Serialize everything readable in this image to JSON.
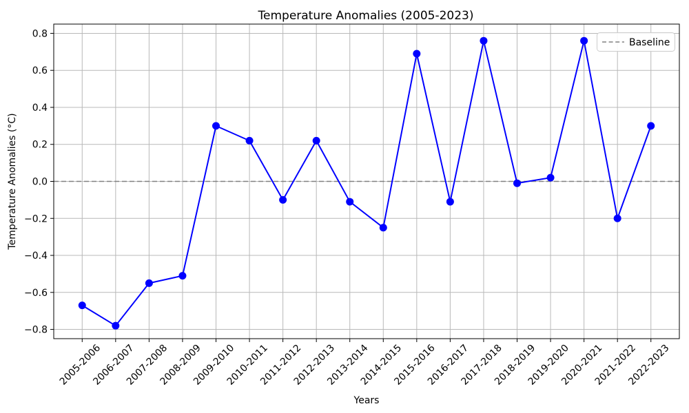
{
  "chart_data": {
    "type": "line",
    "title": "Temperature Anomalies (2005-2023)",
    "xlabel": "Years",
    "ylabel": "Temperature Anomalies (°C)",
    "categories": [
      "2005-2006",
      "2006-2007",
      "2007-2008",
      "2008-2009",
      "2009-2010",
      "2010-2011",
      "2011-2012",
      "2012-2013",
      "2013-2014",
      "2014-2015",
      "2015-2016",
      "2016-2017",
      "2017-2018",
      "2018-2019",
      "2019-2020",
      "2020-2021",
      "2021-2022",
      "2022-2023"
    ],
    "values": [
      -0.67,
      -0.78,
      -0.55,
      -0.51,
      0.3,
      0.22,
      -0.1,
      0.22,
      -0.11,
      -0.25,
      0.69,
      -0.11,
      0.76,
      -0.01,
      0.02,
      0.76,
      -0.2,
      0.3
    ],
    "series_name": "Temperature Anomalies",
    "series_color": "#0000ff",
    "marker": "circle",
    "baseline": {
      "value": 0.0,
      "label": "Baseline",
      "color": "#808080",
      "style": "dashed"
    },
    "ylim": [
      -0.85,
      0.85
    ],
    "yticks": [
      0.8,
      0.6,
      0.4,
      0.2,
      0.0,
      -0.2,
      -0.4,
      -0.6,
      -0.8
    ],
    "ytick_labels": [
      "0.8",
      "0.6",
      "0.4",
      "0.2",
      "0.0",
      "−0.2",
      "−0.4",
      "−0.6",
      "−0.8"
    ],
    "grid": true,
    "grid_color": "#b8b8b8",
    "legend_position": "upper right",
    "legend_label": "Baseline"
  }
}
